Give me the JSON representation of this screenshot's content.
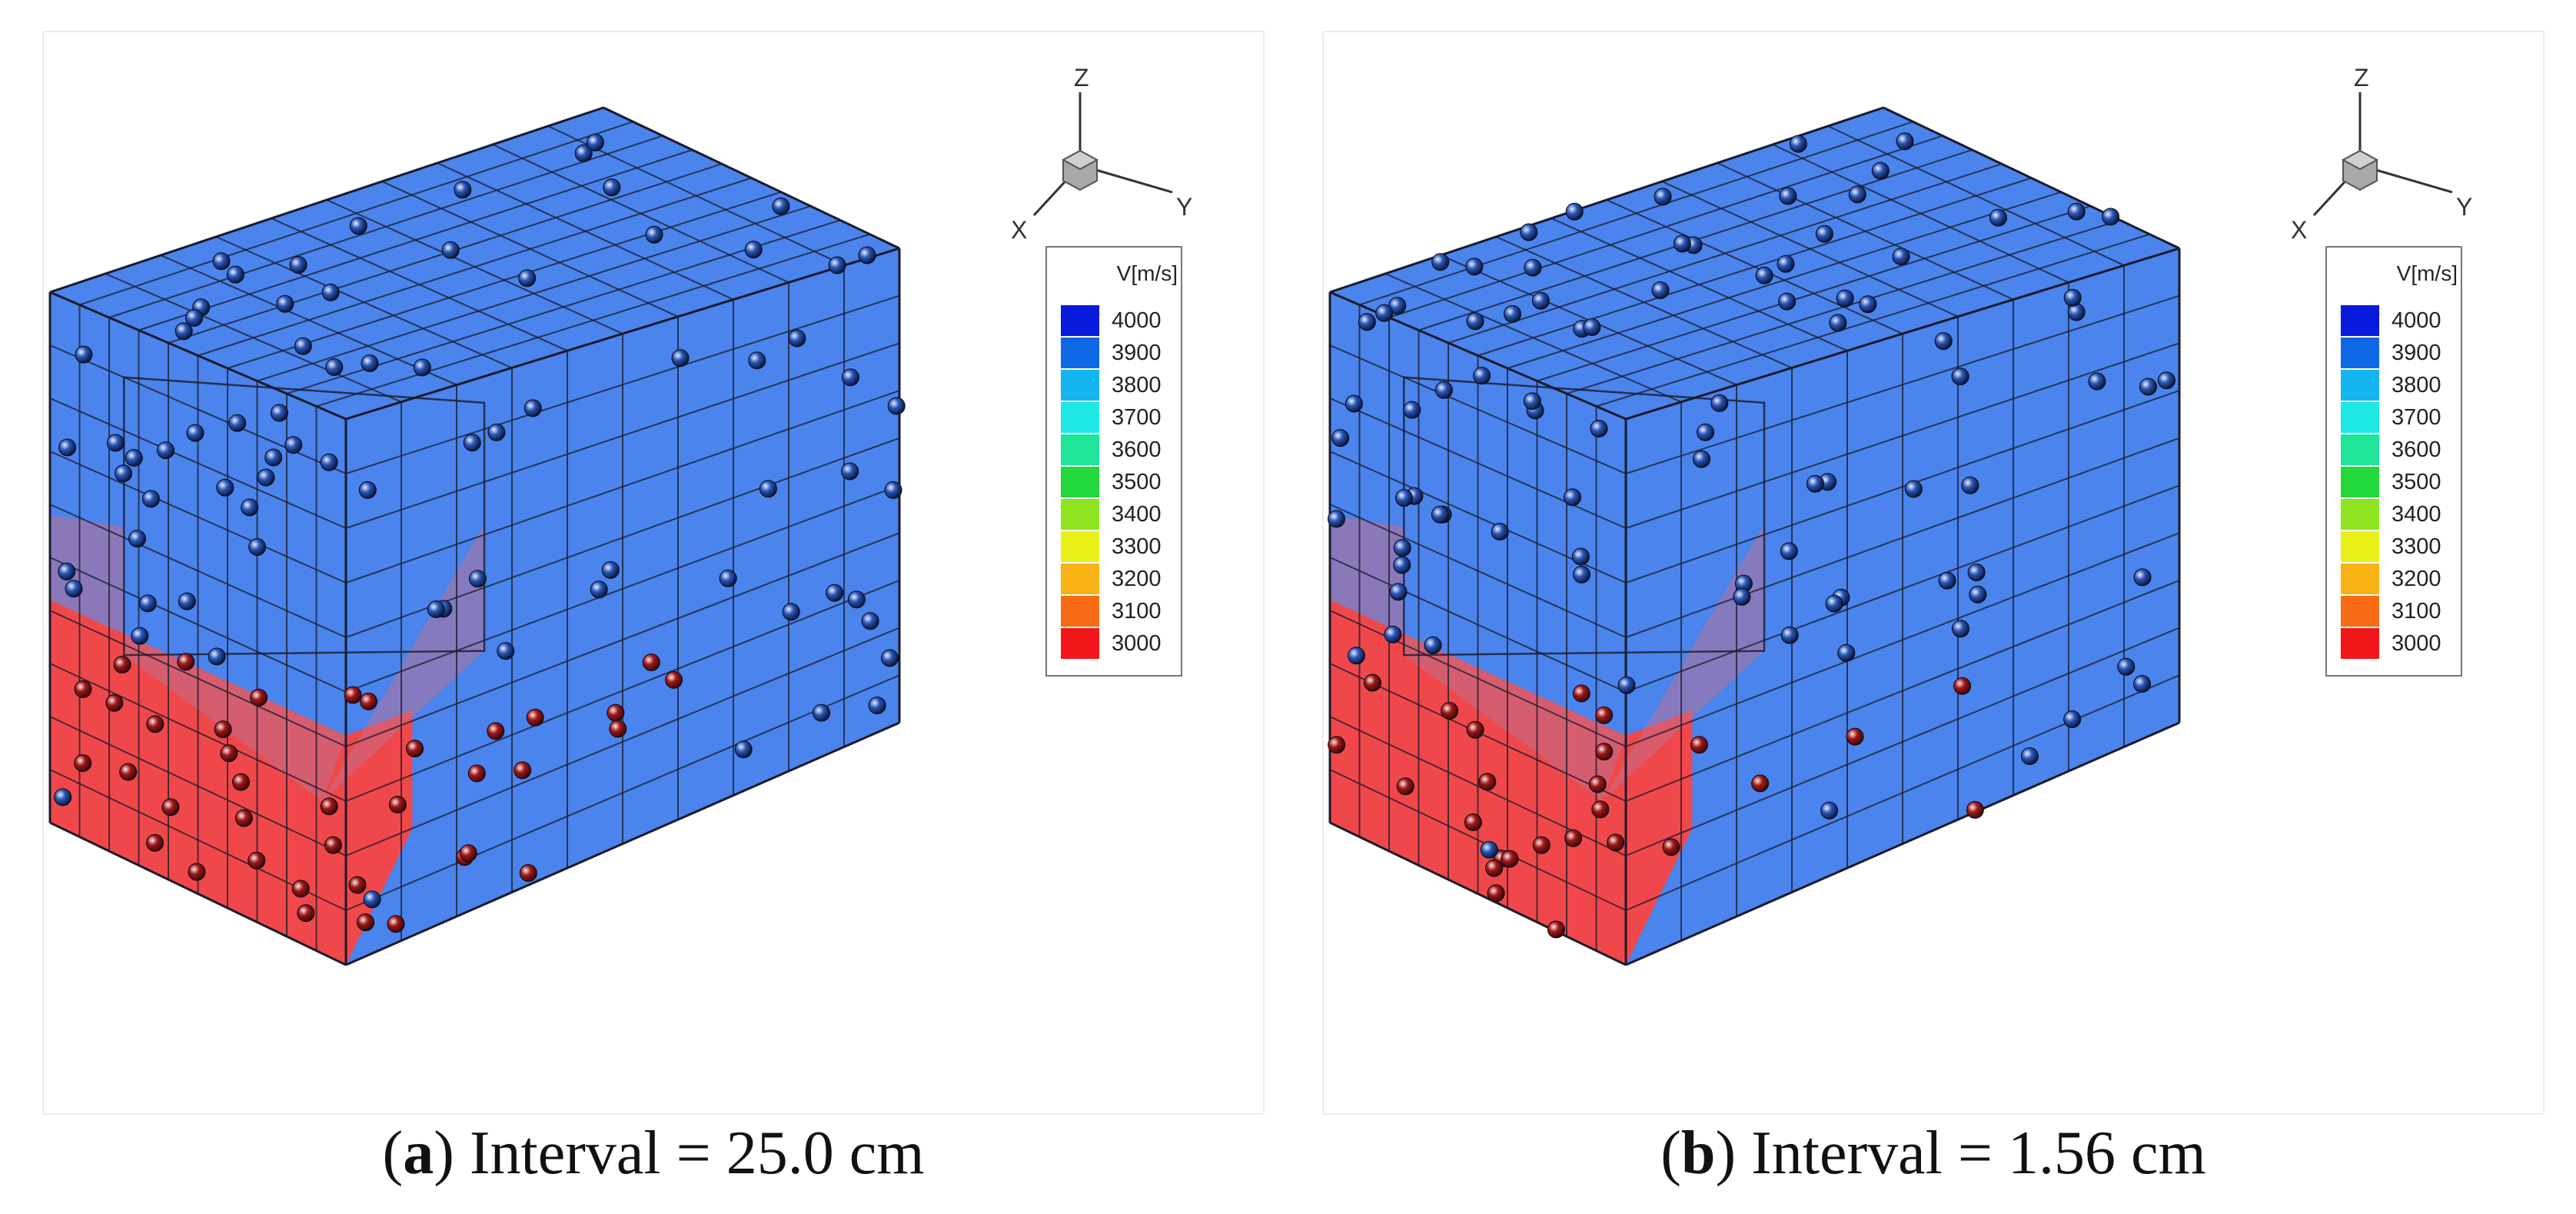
{
  "panels": [
    {
      "id": "a",
      "caption_letter": "a",
      "caption_text": " Interval = 25.0 cm",
      "axes": {
        "z": "Z",
        "x": "X",
        "y": "Y"
      },
      "legend": {
        "title": "V[m/s]",
        "levels": [
          {
            "value": "4000",
            "color": "#0a1adc"
          },
          {
            "value": "3900",
            "color": "#0f68e6"
          },
          {
            "value": "3800",
            "color": "#14b6f0"
          },
          {
            "value": "3700",
            "color": "#1ee8e6"
          },
          {
            "value": "3600",
            "color": "#1fe49a"
          },
          {
            "value": "3500",
            "color": "#22d83a"
          },
          {
            "value": "3400",
            "color": "#8ee41e"
          },
          {
            "value": "3300",
            "color": "#e8f018"
          },
          {
            "value": "3200",
            "color": "#f8b414"
          },
          {
            "value": "3100",
            "color": "#f86a14"
          },
          {
            "value": "3000",
            "color": "#f0161a"
          }
        ]
      }
    },
    {
      "id": "b",
      "caption_letter": "b",
      "caption_text": " Interval = 1.56 cm",
      "axes": {
        "z": "Z",
        "x": "X",
        "y": "Y"
      },
      "legend": {
        "title": "V[m/s]",
        "levels": [
          {
            "value": "4000",
            "color": "#0a1adc"
          },
          {
            "value": "3900",
            "color": "#0f68e6"
          },
          {
            "value": "3800",
            "color": "#14b6f0"
          },
          {
            "value": "3700",
            "color": "#1ee8e6"
          },
          {
            "value": "3600",
            "color": "#1fe49a"
          },
          {
            "value": "3500",
            "color": "#22d83a"
          },
          {
            "value": "3400",
            "color": "#8ee41e"
          },
          {
            "value": "3300",
            "color": "#e8f018"
          },
          {
            "value": "3200",
            "color": "#f8b414"
          },
          {
            "value": "3100",
            "color": "#f86a14"
          },
          {
            "value": "3000",
            "color": "#f0161a"
          }
        ]
      }
    }
  ],
  "colors": {
    "high_velocity": "#4a84ec",
    "low_velocity": "#f0484a",
    "transition": "#c07090",
    "grid_line": "#1a1a2a"
  }
}
